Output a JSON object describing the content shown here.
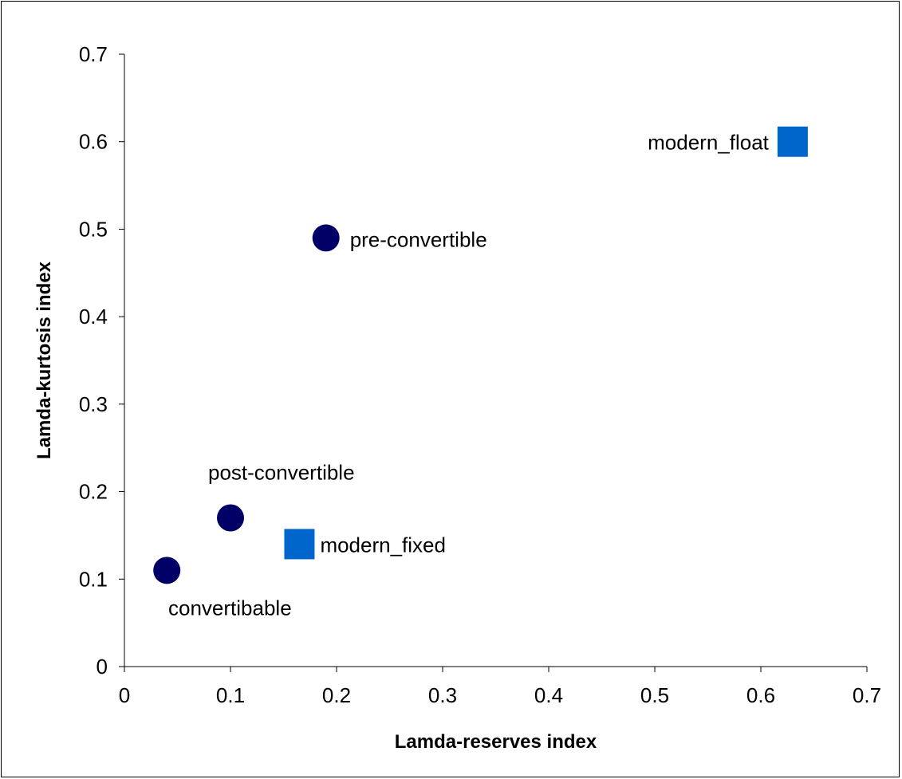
{
  "chart_data": {
    "type": "scatter",
    "title": "",
    "xlabel": "Lamda-reserves index",
    "ylabel": "Lamda-kurtosis index",
    "xlim": [
      0,
      0.7
    ],
    "ylim": [
      0,
      0.7
    ],
    "xticks": [
      "0",
      "0.1",
      "0.2",
      "0.3",
      "0.4",
      "0.5",
      "0.6",
      "0.7"
    ],
    "yticks": [
      "0",
      "0.1",
      "0.2",
      "0.3",
      "0.4",
      "0.5",
      "0.6",
      "0.7"
    ],
    "grid": false,
    "legend": "none",
    "series": [
      {
        "marker": "circle",
        "color": "#000066",
        "points": [
          {
            "label": "convertibable",
            "x": 0.04,
            "y": 0.11
          },
          {
            "label": "post-convertible",
            "x": 0.1,
            "y": 0.17
          },
          {
            "label": "pre-convertible",
            "x": 0.19,
            "y": 0.49
          }
        ]
      },
      {
        "marker": "square",
        "color": "#0066cc",
        "points": [
          {
            "label": "modern_fixed",
            "x": 0.165,
            "y": 0.14
          },
          {
            "label": "modern_float",
            "x": 0.63,
            "y": 0.6
          }
        ]
      }
    ]
  }
}
